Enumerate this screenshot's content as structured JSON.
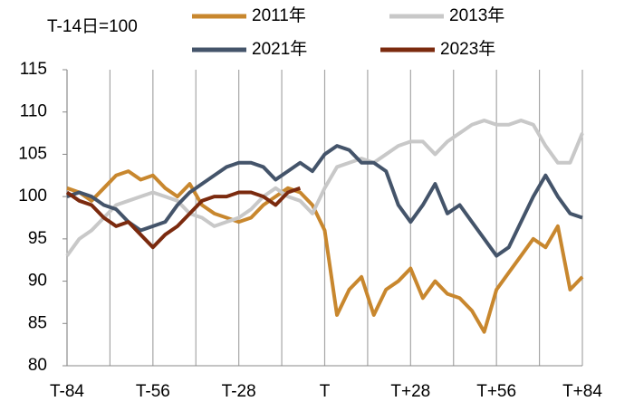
{
  "chart_data": {
    "type": "line",
    "annotation": "T-14日=100",
    "x": [
      -84,
      -80,
      -76,
      -72,
      -68,
      -64,
      -60,
      -56,
      -52,
      -48,
      -44,
      -40,
      -36,
      -32,
      -28,
      -24,
      -20,
      -16,
      -12,
      -8,
      -4,
      0,
      4,
      8,
      12,
      16,
      20,
      24,
      28,
      32,
      36,
      40,
      44,
      48,
      52,
      56,
      60,
      64,
      68,
      72,
      76,
      80,
      84
    ],
    "xlim": [
      -84,
      84
    ],
    "xticks": [
      {
        "value": -84,
        "label": "T-84"
      },
      {
        "value": -56,
        "label": "T-56"
      },
      {
        "value": -28,
        "label": "T-28"
      },
      {
        "value": 0,
        "label": "T"
      },
      {
        "value": 28,
        "label": "T+28"
      },
      {
        "value": 56,
        "label": "T+56"
      },
      {
        "value": 84,
        "label": "T+84"
      }
    ],
    "xgrid": [
      -84,
      -70,
      -56,
      -42,
      -28,
      -14,
      0,
      14,
      28,
      42,
      56,
      70,
      84
    ],
    "ylim": [
      80,
      115
    ],
    "yticks": [
      80,
      85,
      90,
      95,
      100,
      105,
      110,
      115
    ],
    "series": [
      {
        "name": "2011年",
        "color": "#c8872e",
        "values": [
          101,
          100.5,
          99.5,
          101,
          102.5,
          103,
          102,
          102.5,
          101,
          100,
          101.5,
          99,
          98,
          97.5,
          97,
          97.5,
          99,
          100,
          101,
          100.5,
          99,
          96,
          86,
          89,
          90.5,
          86,
          89,
          90,
          91.5,
          88,
          90,
          88.5,
          88,
          86.5,
          84,
          89,
          91,
          93,
          95,
          94,
          96.5,
          89,
          90.5
        ]
      },
      {
        "name": "2013年",
        "color": "#c8c8c8",
        "values": [
          93,
          95,
          96,
          97.5,
          99,
          99.5,
          100,
          100.5,
          100,
          99.5,
          98,
          97.5,
          96.5,
          97,
          97.5,
          98.5,
          100,
          101,
          100,
          99.5,
          98,
          101,
          103.5,
          104,
          104.5,
          104,
          105,
          106,
          106.5,
          106.5,
          105,
          106.5,
          107.5,
          108.5,
          109,
          108.5,
          108.5,
          109,
          108.5,
          106,
          104,
          104,
          107.5
        ]
      },
      {
        "name": "2021年",
        "color": "#44546a",
        "values": [
          100,
          100.5,
          100,
          99,
          98.5,
          97,
          96,
          96.5,
          97,
          99,
          100.5,
          101.5,
          102.5,
          103.5,
          104,
          104,
          103.5,
          102,
          103,
          104,
          103,
          105,
          106,
          105.5,
          104,
          104,
          103,
          99,
          97,
          99,
          101.5,
          98,
          99,
          97,
          95,
          93,
          94,
          97,
          100,
          102.5,
          100,
          98,
          97.5
        ]
      },
      {
        "name": "2023年",
        "color": "#7b2a0e",
        "values": [
          100.5,
          99.5,
          99,
          97.5,
          96.5,
          97,
          95.5,
          94,
          95.5,
          96.5,
          98,
          99.5,
          100,
          100,
          100.5,
          100.5,
          100,
          99,
          100.5,
          101,
          null,
          null,
          null,
          null,
          null,
          null,
          null,
          null,
          null,
          null,
          null,
          null,
          null,
          null,
          null,
          null,
          null,
          null,
          null,
          null,
          null,
          null,
          null
        ]
      }
    ]
  }
}
